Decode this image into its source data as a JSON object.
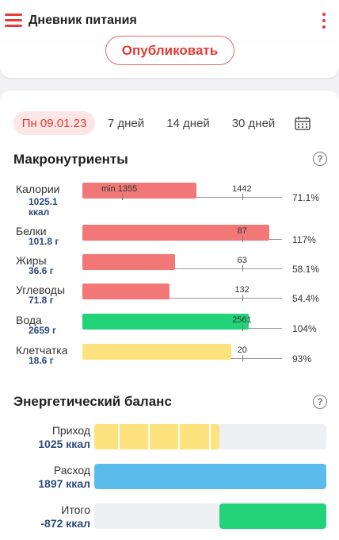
{
  "header": {
    "title": "Дневник питания",
    "menu_icon": "hamburger-menu-icon",
    "more_icon": "more-vertical-icon"
  },
  "publish": {
    "label": "Опубликовать"
  },
  "tabs": [
    {
      "label": "Пн 09.01.23",
      "active": true
    },
    {
      "label": "7 дней",
      "active": false
    },
    {
      "label": "14 дней",
      "active": false
    },
    {
      "label": "30 дней",
      "active": false
    }
  ],
  "macros": {
    "title": "Макронутриенты",
    "rows": [
      {
        "name": "Калории",
        "value": "1025.1 ккал",
        "min_label": "min 1355",
        "goal": "1442",
        "percent": "71.1%",
        "fill": 0.711,
        "color": "#f27878"
      },
      {
        "name": "Белки",
        "value": "101.8 г",
        "goal": "87",
        "percent": "117%",
        "fill": 1.17,
        "color": "#f27878"
      },
      {
        "name": "Жиры",
        "value": "36.6 г",
        "goal": "63",
        "percent": "58.1%",
        "fill": 0.581,
        "color": "#f27878"
      },
      {
        "name": "Углеводы",
        "value": "71.8 г",
        "goal": "132",
        "percent": "54.4%",
        "fill": 0.544,
        "color": "#f27878"
      },
      {
        "name": "Вода",
        "value": "2659 г",
        "goal": "2561",
        "percent": "104%",
        "fill": 1.04,
        "color": "#22d378"
      },
      {
        "name": "Клетчатка",
        "value": "18.6 г",
        "goal": "20",
        "percent": "93%",
        "fill": 0.93,
        "color": "#fde27d"
      }
    ]
  },
  "energy": {
    "title": "Энергетический баланс",
    "rows": [
      {
        "label": "Приход",
        "value": "1025 ккал",
        "fill": 0.54,
        "color": "#fde27d"
      },
      {
        "label": "Расход",
        "value": "1897 ккал",
        "fill": 1.0,
        "color": "#5bbcec"
      },
      {
        "label": "Итого",
        "value": "-872 ккал",
        "fill": 0.46,
        "color": "#22d378"
      }
    ]
  },
  "colors": {
    "accent": "#e53935",
    "value_text": "#2e4a7a"
  }
}
